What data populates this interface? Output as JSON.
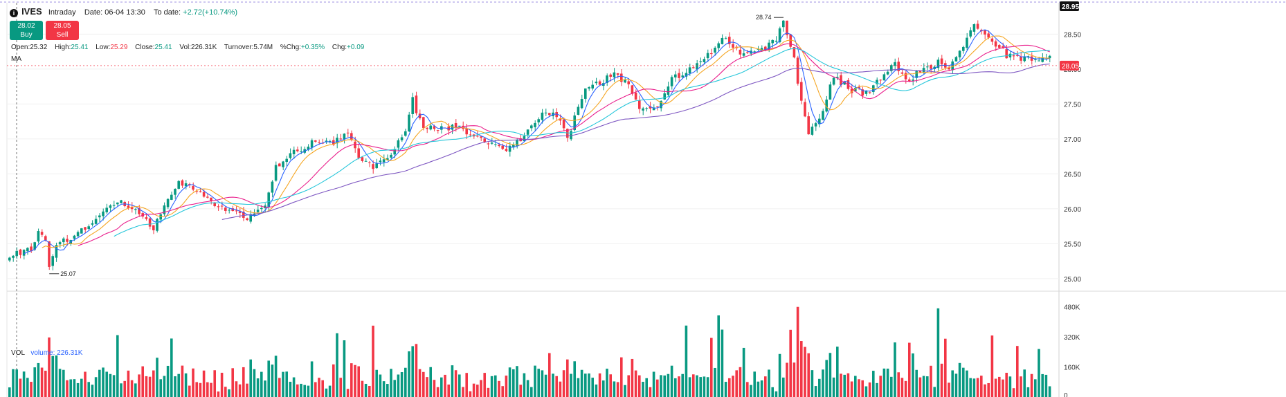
{
  "header": {
    "symbol": "IVES",
    "interval": "Intraday",
    "date_label": "Date:",
    "date": "06-04 13:30",
    "todate_label": "To date:",
    "todate_change": "+2.72(+10.74%)"
  },
  "buttons": {
    "buy_price": "28.02",
    "buy_label": "Buy",
    "sell_price": "28.05",
    "sell_label": "Sell"
  },
  "ohlc": {
    "open_label": "Open:",
    "open": "25.32",
    "high_label": "High:",
    "high": "25.41",
    "low_label": "Low:",
    "low": "25.29",
    "close_label": "Close:",
    "close": "25.41",
    "vol_label": "Vol:",
    "vol": "226.31K",
    "turnover_label": "Turnover:",
    "turnover": "5.74M",
    "pchg_label": "%Chg:",
    "pchg": "+0.35%",
    "chg_label": "Chg:",
    "chg": "+0.09"
  },
  "ma_label": "MA",
  "volume_panel": {
    "label": "VOL",
    "legend": "volume: 226.31K"
  },
  "colors": {
    "up": "#089981",
    "down": "#f23645",
    "ma5": "#2962ff",
    "ma10": "#f5a623",
    "ma20": "#e91e8c",
    "ma30": "#26c6da",
    "ma60": "#7e57c2"
  },
  "chart_data": {
    "type": "candlestick",
    "price_axis": {
      "ticks": [
        28.5,
        28.0,
        27.5,
        27.0,
        26.5,
        26.0,
        25.5,
        25.0
      ],
      "tick_labels": [
        "28.50",
        "28.00",
        "27.50",
        "27.00",
        "26.50",
        "26.00",
        "25.50",
        "25.00"
      ],
      "range": [
        24.83,
        28.95
      ],
      "top_label": "28.95",
      "last_price": 28.05,
      "last_price_label": "28.05"
    },
    "volume_axis": {
      "ticks": [
        480,
        320,
        160,
        0
      ],
      "tick_labels": [
        "480K",
        "320K",
        "160K",
        "0"
      ],
      "range": [
        0,
        560
      ]
    },
    "annotations": {
      "max_label": "28.74",
      "min_label": "25.07"
    },
    "waypoints": [
      [
        0,
        25.35
      ],
      [
        6,
        25.4
      ],
      [
        8,
        25.72
      ],
      [
        10,
        25.55
      ],
      [
        11,
        25.15
      ],
      [
        13,
        25.5
      ],
      [
        18,
        25.62
      ],
      [
        25,
        25.88
      ],
      [
        30,
        26.12
      ],
      [
        35,
        25.95
      ],
      [
        40,
        25.72
      ],
      [
        43,
        26.02
      ],
      [
        47,
        26.35
      ],
      [
        52,
        26.28
      ],
      [
        57,
        26.08
      ],
      [
        61,
        25.98
      ],
      [
        66,
        25.85
      ],
      [
        71,
        26.05
      ],
      [
        74,
        26.6
      ],
      [
        79,
        26.8
      ],
      [
        84,
        26.95
      ],
      [
        89,
        26.92
      ],
      [
        94,
        27.1
      ],
      [
        97,
        26.72
      ],
      [
        101,
        26.6
      ],
      [
        106,
        26.8
      ],
      [
        110,
        27.1
      ],
      [
        112,
        27.55
      ],
      [
        115,
        27.15
      ],
      [
        120,
        27.15
      ],
      [
        125,
        27.2
      ],
      [
        129,
        27.0
      ],
      [
        134,
        26.95
      ],
      [
        138,
        26.85
      ],
      [
        144,
        27.1
      ],
      [
        148,
        27.4
      ],
      [
        152,
        27.35
      ],
      [
        155,
        27.0
      ],
      [
        160,
        27.75
      ],
      [
        164,
        27.8
      ],
      [
        168,
        27.95
      ],
      [
        172,
        27.75
      ],
      [
        175,
        27.45
      ],
      [
        180,
        27.5
      ],
      [
        184,
        27.85
      ],
      [
        189,
        28.0
      ],
      [
        194,
        28.2
      ],
      [
        199,
        28.45
      ],
      [
        203,
        28.2
      ],
      [
        208,
        28.25
      ],
      [
        213,
        28.4
      ],
      [
        215,
        28.7
      ],
      [
        218,
        28.15
      ],
      [
        220,
        27.5
      ],
      [
        222,
        27.1
      ],
      [
        225,
        27.3
      ],
      [
        229,
        27.9
      ],
      [
        234,
        27.7
      ],
      [
        239,
        27.65
      ],
      [
        243,
        27.95
      ],
      [
        246,
        28.05
      ],
      [
        249,
        27.85
      ],
      [
        253,
        27.95
      ],
      [
        258,
        28.1
      ],
      [
        261,
        28.0
      ],
      [
        265,
        28.3
      ],
      [
        268,
        28.62
      ],
      [
        272,
        28.45
      ],
      [
        277,
        28.2
      ],
      [
        282,
        28.15
      ],
      [
        286,
        28.15
      ],
      [
        289,
        28.18
      ]
    ]
  }
}
